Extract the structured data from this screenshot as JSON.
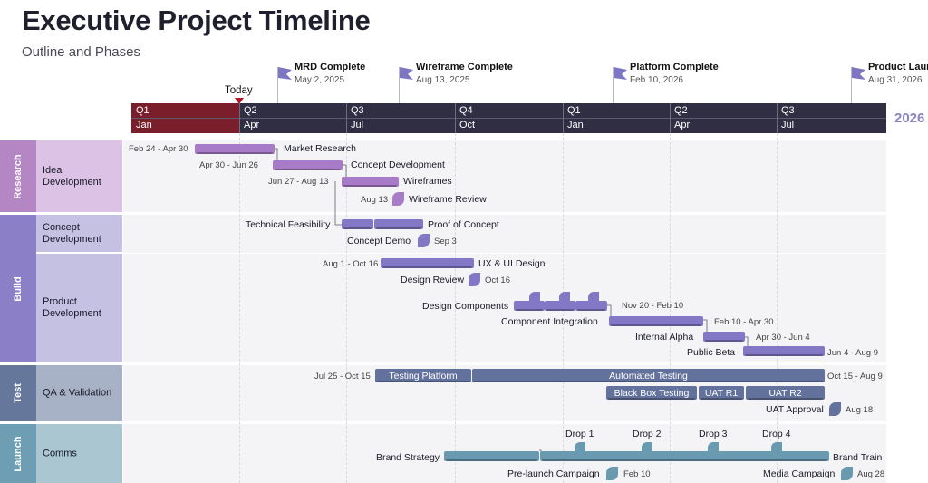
{
  "header": {
    "title": "Executive Project Timeline",
    "subtitle": "Outline and Phases"
  },
  "today_label": "Today",
  "year_label": "2026",
  "milestones": [
    {
      "name": "MRD Complete",
      "date": "May 2, 2025"
    },
    {
      "name": "Wireframe Complete",
      "date": "Aug 13, 2025"
    },
    {
      "name": "Platform Complete",
      "date": "Feb 10, 2026"
    },
    {
      "name": "Product Launch",
      "date": "Aug 31, 2026"
    }
  ],
  "timescale": {
    "quarters": [
      "Q1",
      "Q2",
      "Q3",
      "Q4",
      "Q1",
      "Q2",
      "Q3"
    ],
    "months": [
      "Jan",
      "Apr",
      "Jul",
      "Oct",
      "Jan",
      "Apr",
      "Jul"
    ]
  },
  "groups": [
    {
      "name": "Research",
      "color": "#b487c4"
    },
    {
      "name": "Build",
      "color": "#8b80c7"
    },
    {
      "name": "Test",
      "color": "#66779c"
    },
    {
      "name": "Launch",
      "color": "#6e9eb4"
    }
  ],
  "categories": [
    {
      "name": "Idea Development",
      "color": "#dcc3e6"
    },
    {
      "name": "Concept Development",
      "color": "#c5c1e3"
    },
    {
      "name": "Product Development",
      "color": "#c5c1e3"
    },
    {
      "name": "QA & Validation",
      "color": "#a8b2c6"
    },
    {
      "name": "Comms",
      "color": "#a9c6d1"
    }
  ],
  "tasks": {
    "market_research": {
      "name": "Market Research",
      "dates": "Feb 24 - Apr 30"
    },
    "concept_dev": {
      "name": "Concept Development",
      "dates": "Apr 30 - Jun 26"
    },
    "wireframes": {
      "name": "Wireframes",
      "dates": "Jun 27 - Aug 13"
    },
    "wireframe_review": {
      "name": "Wireframe Review",
      "date": "Aug 13"
    },
    "tech_feasibility": {
      "name": "Technical Feasibility"
    },
    "proof_of_concept": {
      "name": "Proof of Concept"
    },
    "concept_demo": {
      "name": "Concept Demo",
      "date": "Sep 3"
    },
    "ux_ui": {
      "name": "UX & UI Design",
      "dates": "Aug 1 - Oct 16"
    },
    "design_review": {
      "name": "Design Review",
      "date": "Oct 16"
    },
    "design_components": {
      "name": "Design Components",
      "dates": "Nov 20 - Feb 10"
    },
    "component_integration": {
      "name": "Component Integration",
      "dates": "Feb 10 - Apr 30"
    },
    "internal_alpha": {
      "name": "Internal Alpha",
      "dates": "Apr 30 - Jun 4"
    },
    "public_beta": {
      "name": "Public Beta",
      "dates": "Jun 4 - Aug 9"
    },
    "testing_platform": {
      "name": "Testing Platform",
      "dates": "Jul 25 - Oct 15"
    },
    "automated_testing": {
      "name": "Automated Testing",
      "dates": "Oct 15 - Aug 9"
    },
    "black_box": {
      "name": "Black Box Testing"
    },
    "uat_r1": {
      "name": "UAT R1"
    },
    "uat_r2": {
      "name": "UAT R2"
    },
    "uat_approval": {
      "name": "UAT Approval",
      "date": "Aug 18"
    },
    "drops": [
      "Drop 1",
      "Drop 2",
      "Drop 3",
      "Drop 4"
    ],
    "brand_strategy": {
      "name": "Brand Strategy"
    },
    "brand_train": {
      "name": "Brand Train"
    },
    "prelaunch": {
      "name": "Pre-launch Campaign",
      "date": "Feb 10"
    },
    "media_campaign": {
      "name": "Media Campaign",
      "date": "Aug 28"
    }
  },
  "colors": {
    "research": "#a77bc7",
    "build": "#8378c6",
    "test": "#63729d",
    "launch": "#6a9ab0",
    "today": "#b4142a"
  }
}
